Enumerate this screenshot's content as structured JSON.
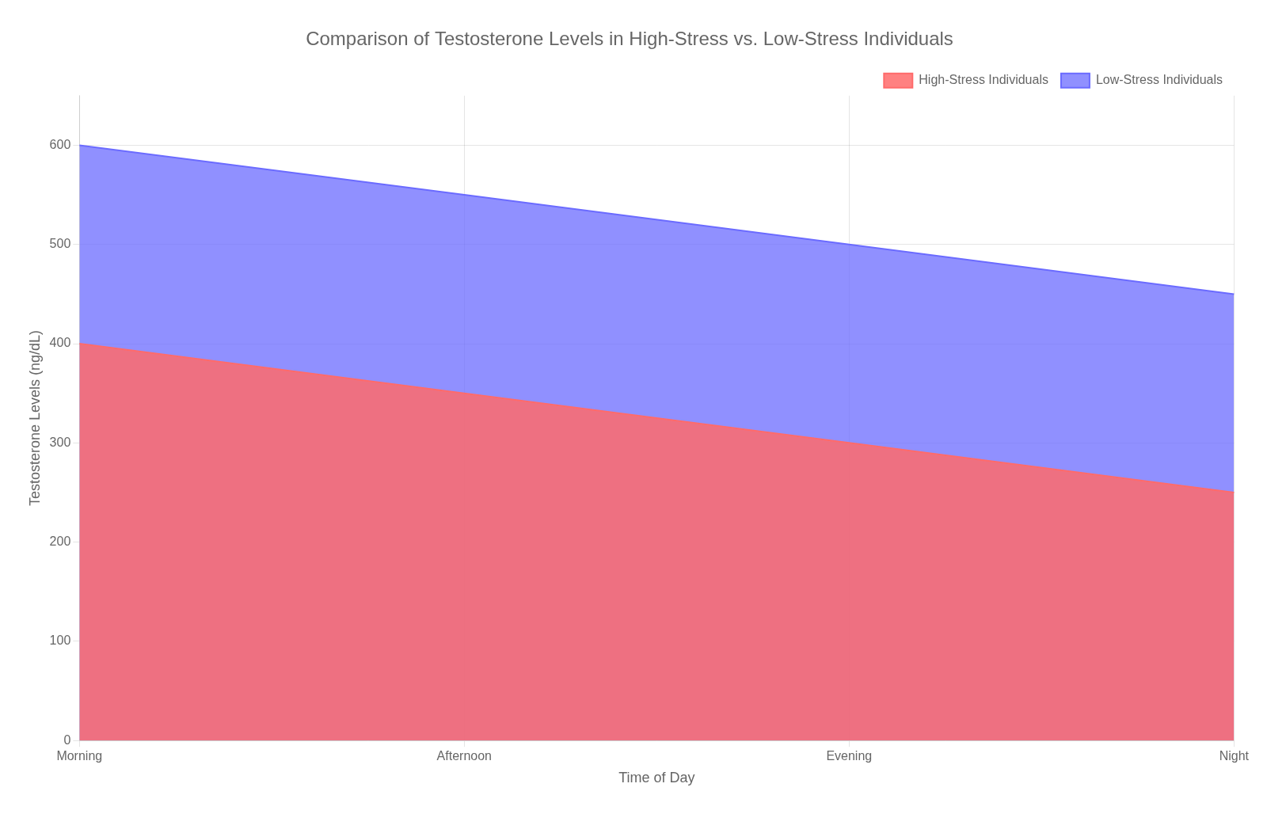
{
  "chart_data": {
    "type": "area",
    "title": "Comparison of Testosterone Levels in High-Stress vs. Low-Stress Individuals",
    "xlabel": "Time of Day",
    "ylabel": "Testosterone Levels (ng/dL)",
    "categories": [
      "Morning",
      "Afternoon",
      "Evening",
      "Night"
    ],
    "series": [
      {
        "name": "High-Stress Individuals",
        "color": "#FF6B6B",
        "values": [
          400,
          350,
          300,
          250
        ]
      },
      {
        "name": "Low-Stress Individuals",
        "color": "#6B6BFF",
        "values": [
          600,
          550,
          500,
          450
        ]
      }
    ],
    "ylim": [
      0,
      650
    ],
    "yticks": [
      0,
      100,
      200,
      300,
      400,
      500,
      600
    ],
    "grid": true,
    "legend": "upper right"
  }
}
